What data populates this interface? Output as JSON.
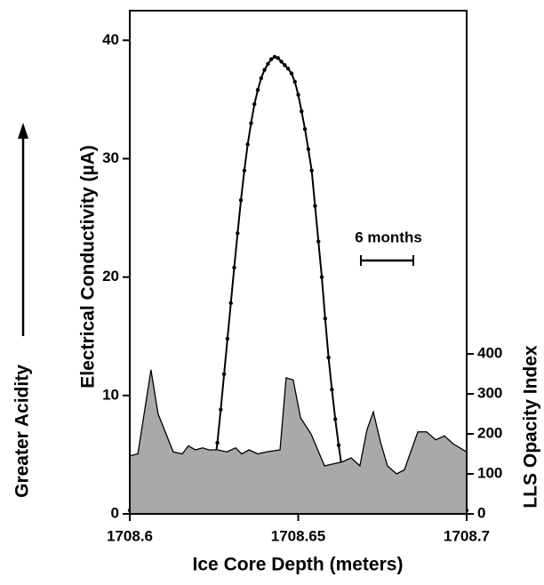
{
  "chart_data": {
    "type": "line",
    "xlabel": "Ice Core Depth  (meters)",
    "ylabel": "Electrical Conductivity  (µA)",
    "y2label": "LLS Opacity Index",
    "annotation": "Greater Acidity",
    "scale_bar_label": "6 months",
    "xlim": [
      1708.6,
      1708.7
    ],
    "xticks": [
      1708.6,
      1708.65,
      1708.7
    ],
    "ylim": [
      0,
      42.5
    ],
    "yticks": [
      0,
      10,
      20,
      30,
      40
    ],
    "y2lim": [
      0,
      1258
    ],
    "y2ticks": [
      0,
      100,
      200,
      300,
      400
    ],
    "series": [
      {
        "kind": "line",
        "axis": "y",
        "color": "#000000",
        "markers": true,
        "x": [
          1708.6,
          1708.601,
          1708.602,
          1708.603,
          1708.604,
          1708.605,
          1708.606,
          1708.607,
          1708.608,
          1708.609,
          1708.61,
          1708.611,
          1708.612,
          1708.613,
          1708.614,
          1708.615,
          1708.616,
          1708.617,
          1708.618,
          1708.619,
          1708.62,
          1708.621,
          1708.622,
          1708.623,
          1708.624,
          1708.625,
          1708.626,
          1708.627,
          1708.628,
          1708.629,
          1708.63,
          1708.631,
          1708.632,
          1708.633,
          1708.634,
          1708.635,
          1708.636,
          1708.637,
          1708.638,
          1708.639,
          1708.64,
          1708.641,
          1708.642,
          1708.643,
          1708.644,
          1708.645,
          1708.646,
          1708.647,
          1708.648,
          1708.649,
          1708.65,
          1708.651,
          1708.652,
          1708.653,
          1708.654,
          1708.655,
          1708.656,
          1708.657,
          1708.658,
          1708.659,
          1708.66,
          1708.661,
          1708.662,
          1708.663,
          1708.664,
          1708.665,
          1708.666,
          1708.667,
          1708.668,
          1708.669,
          1708.67,
          1708.671,
          1708.672,
          1708.673,
          1708.674,
          1708.675,
          1708.676,
          1708.677,
          1708.678,
          1708.679,
          1708.68,
          1708.681,
          1708.682,
          1708.683,
          1708.684,
          1708.685,
          1708.686,
          1708.687,
          1708.688,
          1708.689,
          1708.69,
          1708.691,
          1708.692,
          1708.693,
          1708.694,
          1708.695,
          1708.696,
          1708.697,
          1708.698,
          1708.699,
          1708.7
        ],
        "values": [
          0.3,
          0.3,
          0.3,
          0.3,
          0.3,
          0.3,
          0.3,
          0.3,
          0.4,
          0.5,
          0.6,
          0.7,
          0.8,
          0.9,
          0.9,
          0.8,
          0.7,
          0.5,
          0.4,
          0.3,
          0.3,
          0.3,
          0.4,
          0.8,
          2,
          3.8,
          6,
          8.8,
          11.8,
          14.8,
          17.8,
          20.8,
          23.7,
          26.5,
          29,
          31.2,
          33,
          34.6,
          35.8,
          36.8,
          37.5,
          38,
          38.4,
          38.6,
          38.5,
          38.2,
          37.9,
          37.6,
          37.2,
          36.5,
          35.4,
          34,
          32.5,
          30.8,
          29,
          26,
          23,
          20,
          16.5,
          13.2,
          10.5,
          8,
          5.8,
          3.8,
          2.3,
          1.3,
          0.7,
          0.4,
          0.3,
          0.4,
          0.5,
          0.6,
          0.7,
          0.8,
          0.8,
          0.8,
          0.7,
          0.6,
          0.5,
          0.4,
          0.4,
          0.3,
          0.3,
          0.3,
          0.3,
          0.3,
          0.3,
          0.3,
          0.3,
          0.3,
          0.3,
          0.3,
          0.3,
          0.3,
          0.3,
          0.3,
          0.3,
          0.3,
          0.3,
          0.3,
          0.3
        ]
      },
      {
        "kind": "area",
        "axis": "y2",
        "color": "#a9a9a9",
        "x": [
          1708.6,
          1708.6024,
          1708.6063,
          1708.6084,
          1708.6129,
          1708.6156,
          1708.6174,
          1708.6195,
          1708.6216,
          1708.6235,
          1708.6261,
          1708.6288,
          1708.6314,
          1708.6332,
          1708.6354,
          1708.638,
          1708.6406,
          1708.6446,
          1708.6464,
          1708.6485,
          1708.6507,
          1708.6538,
          1708.6578,
          1708.6604,
          1708.6631,
          1708.6657,
          1708.6683,
          1708.6704,
          1708.6723,
          1708.6744,
          1708.6765,
          1708.6792,
          1708.6815,
          1708.6855,
          1708.6881,
          1708.6908,
          1708.6934,
          1708.696,
          1708.7
        ],
        "values": [
          145,
          150,
          360,
          250,
          155,
          150,
          170,
          160,
          165,
          160,
          160,
          155,
          165,
          150,
          160,
          150,
          155,
          160,
          340,
          335,
          240,
          200,
          120,
          125,
          130,
          140,
          120,
          210,
          255,
          180,
          120,
          100,
          110,
          205,
          205,
          185,
          195,
          175,
          155
        ]
      }
    ]
  }
}
